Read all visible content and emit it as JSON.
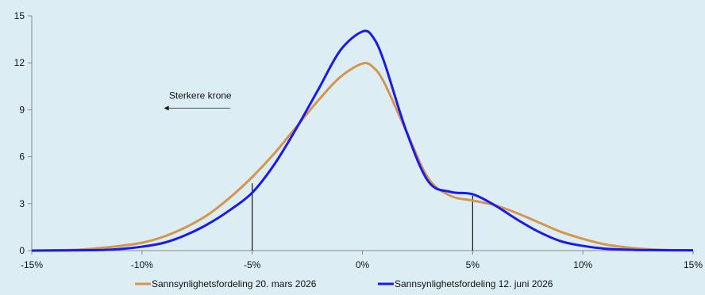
{
  "chart_data": {
    "type": "line",
    "xlim": [
      -15,
      15
    ],
    "ylim": [
      0,
      15
    ],
    "x_ticks": [
      {
        "value": -15,
        "label": "-15%"
      },
      {
        "value": -10,
        "label": "-10%"
      },
      {
        "value": -5,
        "label": "-5%"
      },
      {
        "value": 0,
        "label": "0%"
      },
      {
        "value": 5,
        "label": "5%"
      },
      {
        "value": 10,
        "label": "10%"
      },
      {
        "value": 15,
        "label": "15%"
      }
    ],
    "y_ticks": [
      {
        "value": 0,
        "label": "0"
      },
      {
        "value": 3,
        "label": "3"
      },
      {
        "value": 6,
        "label": "6"
      },
      {
        "value": 9,
        "label": "9"
      },
      {
        "value": 12,
        "label": "12"
      },
      {
        "value": 15,
        "label": "15"
      }
    ],
    "series": [
      {
        "name": "Sannsynlighetsfordeling 20. mars 2026",
        "color": "#d4964f",
        "x": [
          -15,
          -13,
          -12,
          -11,
          -10,
          -9,
          -8,
          -7,
          -6,
          -5,
          -4,
          -3,
          -2,
          -1,
          0,
          0.5,
          1,
          2,
          3,
          4,
          5,
          6,
          7,
          8,
          9,
          10,
          11,
          12,
          13,
          14,
          15
        ],
        "y": [
          0,
          0.05,
          0.15,
          0.3,
          0.5,
          0.9,
          1.5,
          2.3,
          3.4,
          4.7,
          6.2,
          7.9,
          9.6,
          11.1,
          11.95,
          11.7,
          10.7,
          7.6,
          4.6,
          3.5,
          3.2,
          2.9,
          2.4,
          1.8,
          1.2,
          0.75,
          0.4,
          0.2,
          0.08,
          0.03,
          0.02
        ]
      },
      {
        "name": "Sannsynlighetsfordeling 12. juni 2026",
        "color": "#1a1aeb",
        "x": [
          -15,
          -12,
          -11,
          -10,
          -9,
          -8,
          -7,
          -6,
          -5,
          -4,
          -3,
          -2,
          -1,
          0,
          0.5,
          1,
          2,
          3,
          4,
          5,
          6,
          7,
          8,
          9,
          10,
          11,
          12,
          13,
          14,
          15
        ],
        "y": [
          0,
          0.03,
          0.1,
          0.25,
          0.5,
          1.0,
          1.7,
          2.6,
          3.7,
          5.5,
          7.8,
          10.3,
          12.8,
          14.0,
          13.6,
          12.0,
          7.6,
          4.4,
          3.75,
          3.6,
          2.9,
          2.0,
          1.2,
          0.6,
          0.3,
          0.12,
          0.06,
          0.03,
          0.02,
          0.02
        ]
      }
    ],
    "vlines": [
      {
        "x": -5,
        "y": 4.3
      },
      {
        "x": 5,
        "y": 3.5
      }
    ],
    "annotation": {
      "text": "Sterkere krone",
      "arrow_from_x": -6,
      "arrow_to_x": -9,
      "y": 9
    }
  }
}
